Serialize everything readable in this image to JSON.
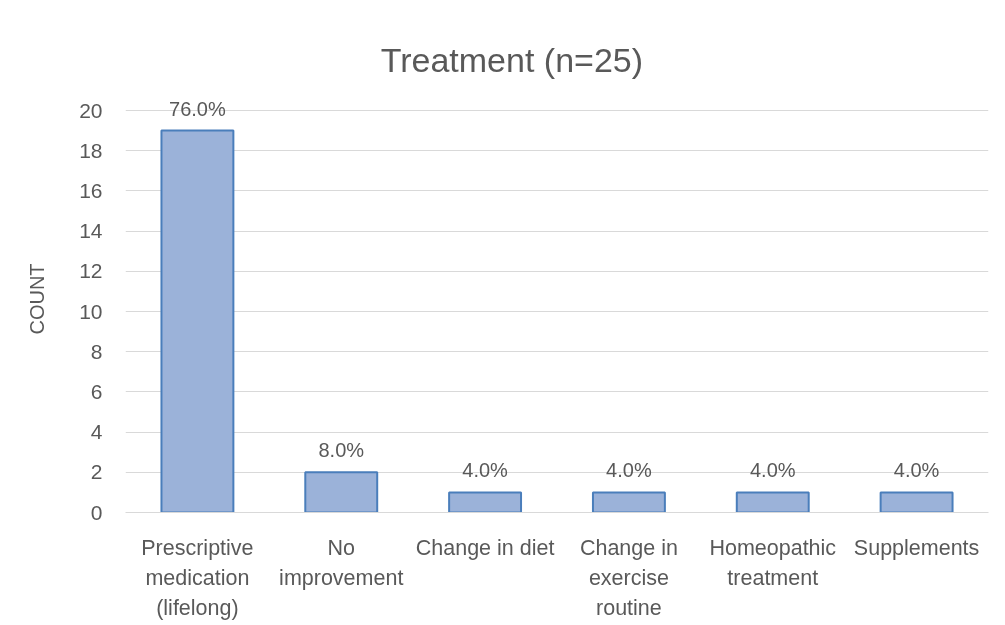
{
  "chart_data": {
    "type": "bar",
    "title": "Treatment (n=25)",
    "ylabel": "COUNT",
    "categories": [
      "Prescriptive medication (lifelong)",
      "No improvement",
      "Change in diet",
      "Change in exercise routine",
      "Homeopathic treatment",
      "Supplements"
    ],
    "values": [
      19,
      2,
      1,
      1,
      1,
      1
    ],
    "annotations": [
      {
        "text": "76.0%",
        "x": "Prescriptive medication (lifelong)",
        "y": 19
      },
      {
        "text": "8.0%",
        "x": "No improvement",
        "y": 2
      },
      {
        "text": "4.0%",
        "x": "Change in diet",
        "y": 1
      },
      {
        "text": "4.0%",
        "x": "Change in exercise routine",
        "y": 1
      },
      {
        "text": "4.0%",
        "x": "Homeopathic treatment",
        "y": 1
      },
      {
        "text": "4.0%",
        "x": "Supplements",
        "y": 1
      }
    ],
    "color": "#9bb2d9",
    "ylim": [
      0,
      20
    ],
    "yticks": [
      0,
      2,
      4,
      6,
      8,
      10,
      12,
      14,
      16,
      18,
      20
    ],
    "grid": "y"
  }
}
